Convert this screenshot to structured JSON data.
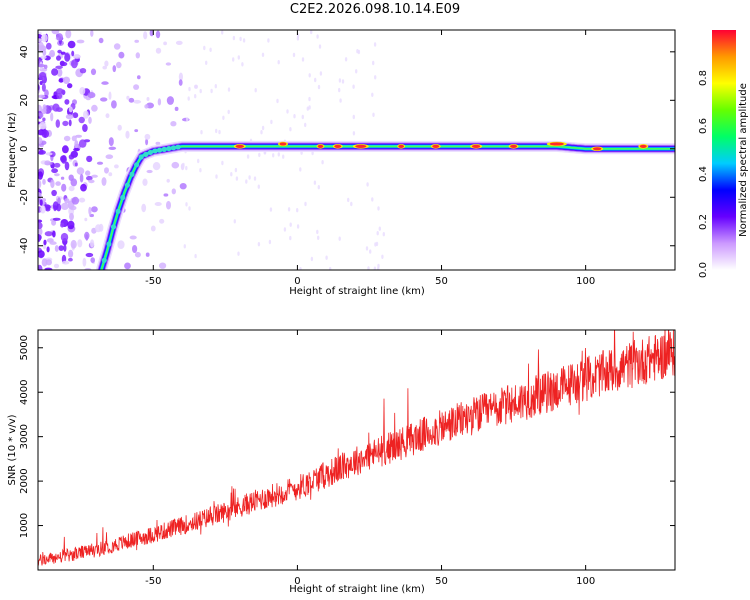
{
  "figure": {
    "title": "C2E2.2026.098.10.14.E09"
  },
  "chart_data": [
    {
      "type": "heatmap",
      "title": "C2E2.2026.098.10.14.E09",
      "xlabel": "Height of straight line (km)",
      "ylabel": "Frequency (Hz)",
      "xlim": [
        -90,
        131
      ],
      "ylim": [
        -50,
        49
      ],
      "xticks": [
        -50,
        0,
        50,
        100
      ],
      "yticks": [
        -40,
        -20,
        0,
        20,
        40
      ],
      "ridge": {
        "description_points_x": [
          -68,
          -66,
          -64,
          -62,
          -60,
          -58,
          -56,
          -54,
          -50,
          -45,
          -40,
          -30,
          -20,
          -10,
          0,
          20,
          40,
          60,
          80,
          90,
          100,
          131
        ],
        "description_points_y": [
          -50,
          -42,
          -33,
          -25,
          -18,
          -12,
          -7,
          -3,
          -1,
          0,
          1,
          1,
          1,
          1,
          1,
          1,
          1,
          1,
          1,
          1,
          0,
          0
        ]
      },
      "colorbar": {
        "label": "Normalized spectral amplitude",
        "range": [
          0,
          1
        ],
        "ticks": [
          "0.0",
          "0.2",
          "0.4",
          "0.6",
          "0.8"
        ],
        "tick_values": [
          0.0,
          0.2,
          0.4,
          0.6,
          0.8
        ],
        "colors": [
          "#ffffff",
          "#cc99ff",
          "#6600ff",
          "#0000ff",
          "#00ccff",
          "#00ff66",
          "#66ff00",
          "#ffff00",
          "#ff9900",
          "#ff0033"
        ]
      }
    },
    {
      "type": "line",
      "xlabel": "Height of straight line (km)",
      "ylabel": "SNR (10 * v/v)",
      "xlim": [
        -90,
        131
      ],
      "ylim": [
        0,
        5400
      ],
      "xticks": [
        -50,
        0,
        50,
        100
      ],
      "yticks": [
        1000,
        2000,
        3000,
        4000,
        5000
      ],
      "series": [
        {
          "name": "SNR",
          "color": "#ee2222",
          "trend_x": [
            -90,
            -70,
            -50,
            -30,
            -10,
            0,
            20,
            40,
            60,
            80,
            100,
            120,
            131
          ],
          "trend_y": [
            200,
            450,
            800,
            1200,
            1650,
            1850,
            2450,
            2950,
            3450,
            3850,
            4300,
            4700,
            4900
          ]
        }
      ]
    }
  ]
}
